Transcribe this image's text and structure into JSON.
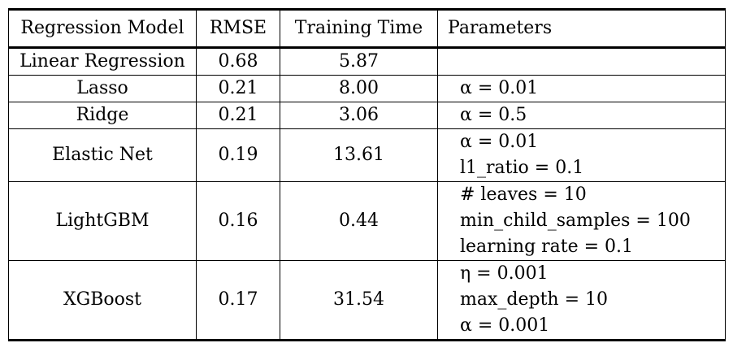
{
  "table": {
    "headers": [
      "Regression Model",
      "RMSE",
      "Training Time",
      "Parameters"
    ],
    "rows": [
      {
        "model": "Linear Regression",
        "rmse": "0.68",
        "time": "5.87",
        "params": []
      },
      {
        "model": "Lasso",
        "rmse": "0.21",
        "time": "8.00",
        "params": [
          "α = 0.01"
        ]
      },
      {
        "model": "Ridge",
        "rmse": "0.21",
        "time": "3.06",
        "params": [
          "α = 0.5"
        ]
      },
      {
        "model": "Elastic Net",
        "rmse": "0.19",
        "time": "13.61",
        "params": [
          "α = 0.01",
          "l1_ratio = 0.1"
        ]
      },
      {
        "model": "LightGBM",
        "rmse": "0.16",
        "time": "0.44",
        "params": [
          "# leaves = 10",
          "min_child_samples = 100",
          "learning rate = 0.1"
        ]
      },
      {
        "model": "XGBoost",
        "rmse": "0.17",
        "time": "31.54",
        "params": [
          "η = 0.001",
          "max_depth = 10",
          "α = 0.001"
        ]
      }
    ]
  }
}
